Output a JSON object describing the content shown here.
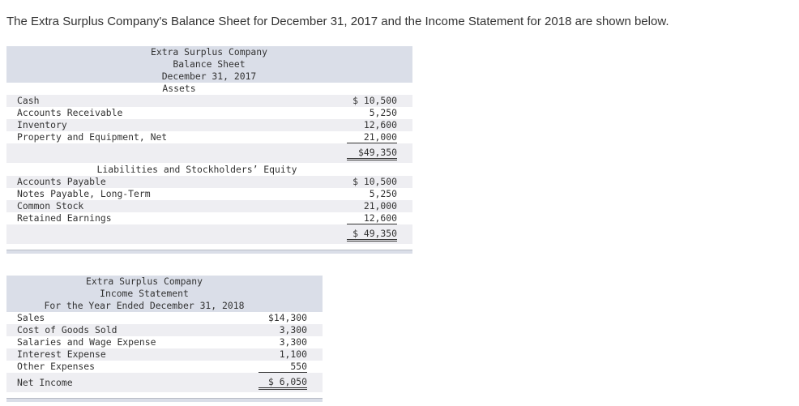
{
  "intro": "The Extra Surplus Company's Balance Sheet for December 31, 2017 and the Income Statement for 2018 are shown below.",
  "balance_sheet": {
    "company": "Extra Surplus Company",
    "title": "Balance Sheet",
    "date": "December 31, 2017",
    "assets_heading": "Assets",
    "assets": [
      {
        "label": "Cash",
        "value": "$ 10,500"
      },
      {
        "label": "Accounts Receivable",
        "value": "5,250"
      },
      {
        "label": "Inventory",
        "value": "12,600"
      },
      {
        "label": "Property and Equipment, Net",
        "value": "21,000"
      }
    ],
    "assets_total": "$49,350",
    "liabilities_heading": "Liabilities and Stockholders’ Equity",
    "liabilities": [
      {
        "label": "Accounts Payable",
        "value": "$ 10,500"
      },
      {
        "label": "Notes Payable, Long-Term",
        "value": "5,250"
      },
      {
        "label": "Common Stock",
        "value": "21,000"
      },
      {
        "label": "Retained Earnings",
        "value": "12,600"
      }
    ],
    "liabilities_total": "$ 49,350"
  },
  "income_statement": {
    "company": "Extra Surplus Company",
    "title": "Income Statement",
    "period": "For the Year Ended December 31, 2018",
    "items": [
      {
        "label": "Sales",
        "value": "$14,300"
      },
      {
        "label": "Cost of Goods Sold",
        "value": "3,300"
      },
      {
        "label": "Salaries and Wage Expense",
        "value": "3,300"
      },
      {
        "label": "Interest Expense",
        "value": "1,100"
      },
      {
        "label": "Other Expenses",
        "value": "550"
      }
    ],
    "net_label": "Net Income",
    "net_value": "$ 6,050"
  }
}
